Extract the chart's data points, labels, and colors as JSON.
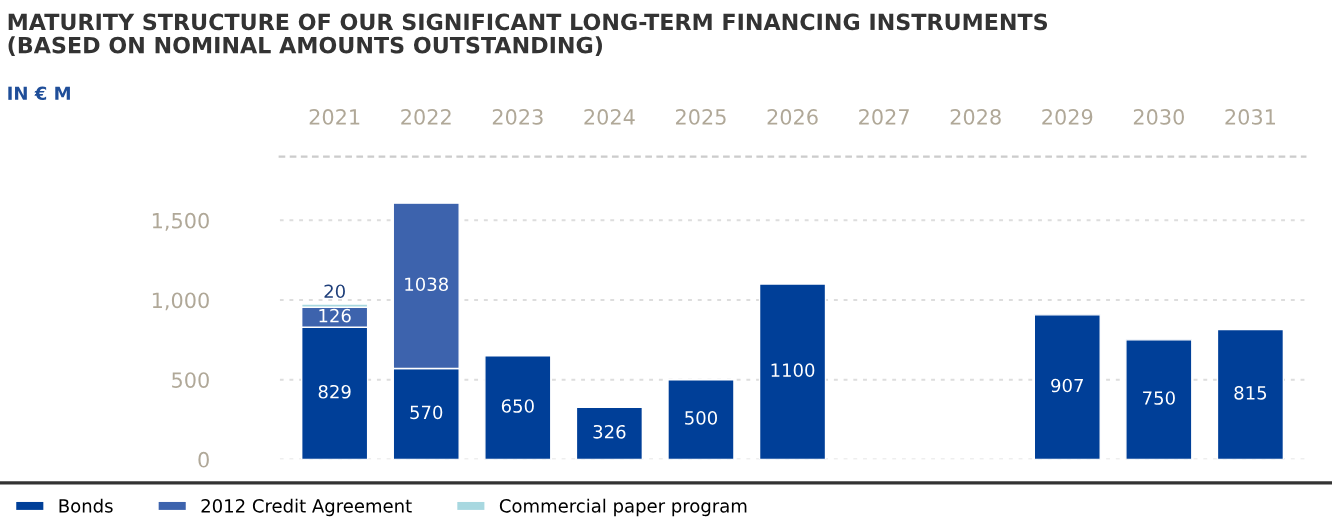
{
  "chart_data": {
    "type": "bar",
    "title": "MATURITY STRUCTURE OF OUR SIGNIFICANT LONG-TERM FINANCING INSTRUMENTS\n(BASED ON NOMINAL AMOUNTS OUTSTANDING)",
    "subtitle": "IN € M",
    "categories": [
      "2021",
      "2022",
      "2023",
      "2024",
      "2025",
      "2026",
      "2027",
      "2028",
      "2029",
      "2030",
      "2031"
    ],
    "series": [
      {
        "name": "Bonds",
        "color": "#003f98",
        "values": [
          829,
          570,
          650,
          326,
          500,
          1100,
          null,
          null,
          907,
          750,
          815
        ]
      },
      {
        "name": "2012 Credit Agreement",
        "color": "#3d63ad",
        "values": [
          126,
          1038,
          null,
          null,
          null,
          null,
          null,
          null,
          null,
          null,
          null
        ]
      },
      {
        "name": "Commercial paper program",
        "color": "#a8d8e0",
        "values": [
          20,
          null,
          null,
          null,
          null,
          null,
          null,
          null,
          null,
          null,
          null
        ]
      }
    ],
    "stacked": true,
    "data_labels": true,
    "ylim": [
      0,
      1900
    ],
    "yticks": [
      0,
      500,
      {
        "value": 1000,
        "label": "1,000"
      },
      {
        "value": 1500,
        "label": "1,500"
      }
    ],
    "grid": "y",
    "legend": "bottom left"
  }
}
